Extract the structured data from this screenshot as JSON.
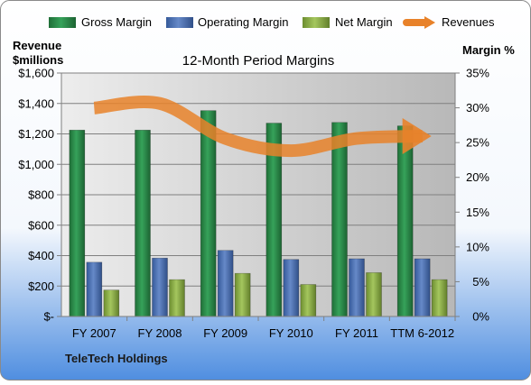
{
  "chart_data": {
    "type": "bar",
    "title": "12-Month Period Margins",
    "left_axis_title_line1": "Revenue",
    "left_axis_title_line2": "$millions",
    "right_axis_title": "Margin %",
    "company": "TeleTech Holdings",
    "categories": [
      "FY 2007",
      "FY 2008",
      "FY 2009",
      "FY 2010",
      "FY 2011",
      "TTM 6-2012"
    ],
    "left_axis": {
      "min": 0,
      "max": 1600,
      "step": 200,
      "tick_labels": [
        "$-",
        "$200",
        "$400",
        "$600",
        "$800",
        "$1,000",
        "$1,200",
        "$1,400",
        "$1,600"
      ]
    },
    "right_axis": {
      "min": 0,
      "max": 35,
      "step": 5,
      "tick_labels": [
        "0%",
        "5%",
        "10%",
        "15%",
        "20%",
        "25%",
        "30%",
        "35%"
      ]
    },
    "series": [
      {
        "name": "Gross Margin",
        "kind": "bar",
        "axis": "right",
        "color": "#2E8B4A",
        "values": [
          26.8,
          26.8,
          29.6,
          27.8,
          27.9,
          27.4
        ]
      },
      {
        "name": "Operating Margin",
        "kind": "bar",
        "axis": "right",
        "color": "#4F73B6",
        "values": [
          7.8,
          8.4,
          9.5,
          8.2,
          8.3,
          8.3
        ]
      },
      {
        "name": "Net Margin",
        "kind": "bar",
        "axis": "right",
        "color": "#8BB04A",
        "values": [
          3.8,
          5.3,
          6.2,
          4.6,
          6.3,
          5.3
        ]
      },
      {
        "name": "Revenues",
        "kind": "line",
        "axis": "left",
        "color": "#E8822A",
        "values": [
          1370,
          1400,
          1170,
          1090,
          1170,
          1185
        ]
      }
    ],
    "legend_position": "top",
    "grid": true
  }
}
